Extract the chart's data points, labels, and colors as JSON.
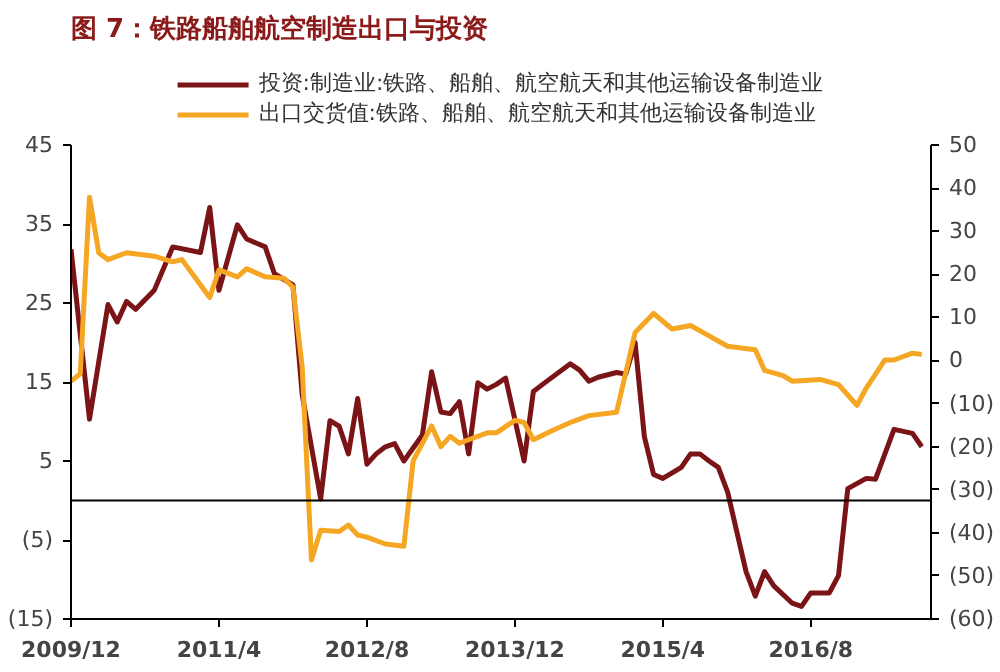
{
  "chart_data": {
    "type": "line",
    "title": "图 7：铁路船舶航空制造出口与投资",
    "legend": "top",
    "grid": false,
    "xlim": [
      "2009-12",
      "2017-09"
    ],
    "xticks": [
      {
        "value": "2009-12",
        "label": "2009/12"
      },
      {
        "value": "2011-04",
        "label": "2011/4"
      },
      {
        "value": "2012-08",
        "label": "2012/8"
      },
      {
        "value": "2013-12",
        "label": "2013/12"
      },
      {
        "value": "2015-04",
        "label": "2015/4"
      },
      {
        "value": "2016-08",
        "label": "2016/8"
      }
    ],
    "ylim": [
      -15,
      45
    ],
    "yticks": [
      {
        "value": -15,
        "label": "(15)"
      },
      {
        "value": -5,
        "label": "(5)"
      },
      5,
      15,
      25,
      35,
      45
    ],
    "y2lim": [
      -60,
      50
    ],
    "y2ticks": [
      {
        "value": -60,
        "label": "(60)"
      },
      {
        "value": -50,
        "label": "(50)"
      },
      {
        "value": -40,
        "label": "(40)"
      },
      {
        "value": -30,
        "label": "(30)"
      },
      {
        "value": -20,
        "label": "(20)"
      },
      {
        "value": -10,
        "label": "(10)"
      },
      0,
      10,
      20,
      30,
      40,
      50
    ],
    "ref_lines": [
      {
        "axis": "y",
        "value": 0,
        "color": "#000000"
      }
    ],
    "series": [
      {
        "name": "投资:制造业:铁路、船舶、航空航天和其他运输设备制造业",
        "color": "#7b1416",
        "x": [
          "2009-12",
          "2010-02",
          "2010-04",
          "2010-05",
          "2010-06",
          "2010-07",
          "2010-09",
          "2010-11",
          "2011-02",
          "2011-03",
          "2011-04",
          "2011-06",
          "2011-07",
          "2011-09",
          "2011-10",
          "2011-12",
          "2012-01",
          "2012-03",
          "2012-04",
          "2012-05",
          "2012-06",
          "2012-07",
          "2012-08",
          "2012-09",
          "2012-10",
          "2012-11",
          "2012-12",
          "2013-02",
          "2013-03",
          "2013-04",
          "2013-05",
          "2013-06",
          "2013-07",
          "2013-08",
          "2013-09",
          "2013-10",
          "2013-11",
          "2014-01",
          "2014-02",
          "2014-03",
          "2014-06",
          "2014-07",
          "2014-08",
          "2014-09",
          "2014-11",
          "2014-12",
          "2015-01",
          "2015-02",
          "2015-03",
          "2015-04",
          "2015-06",
          "2015-07",
          "2015-08",
          "2015-09",
          "2015-10",
          "2015-11",
          "2016-01",
          "2016-02",
          "2016-03",
          "2016-04",
          "2016-06",
          "2016-07",
          "2016-08",
          "2016-10",
          "2016-11",
          "2016-12",
          "2017-02",
          "2017-03",
          "2017-05",
          "2017-07",
          "2017-08"
        ],
        "values": [
          31.8,
          10.3,
          24.8,
          22.6,
          25.2,
          24.2,
          26.6,
          32.1,
          31.4,
          37.1,
          26.6,
          34.9,
          33.1,
          32.1,
          28.7,
          27.3,
          13.4,
          0.2,
          10.1,
          9.4,
          5.9,
          12.9,
          4.6,
          5.9,
          6.8,
          7.2,
          5.0,
          8.3,
          16.3,
          11.2,
          11.0,
          12.5,
          5.9,
          14.9,
          14.1,
          14.7,
          15.5,
          5.0,
          13.8,
          14.7,
          17.3,
          16.5,
          15.1,
          15.6,
          16.2,
          16.0,
          20.0,
          8.1,
          3.3,
          2.8,
          4.2,
          5.9,
          5.9,
          5.0,
          4.2,
          1.1,
          -9.0,
          -12.1,
          -9.0,
          -10.8,
          -13.0,
          -13.4,
          -11.7,
          -11.7,
          -9.5,
          1.5,
          2.8,
          2.7,
          9.0,
          8.5,
          6.8
        ]
      },
      {
        "name": "出口交货值:铁路、船舶、航空航天和其他运输设备制造业",
        "color": "#f5a623",
        "axis": "y2",
        "x": [
          "2009-12",
          "2010-01",
          "2010-02",
          "2010-03",
          "2010-04",
          "2010-05",
          "2010-06",
          "2010-09",
          "2010-11",
          "2010-12",
          "2011-03",
          "2011-04",
          "2011-06",
          "2011-07",
          "2011-09",
          "2011-11",
          "2011-12",
          "2012-01",
          "2012-02",
          "2012-03",
          "2012-05",
          "2012-06",
          "2012-07",
          "2012-08",
          "2012-10",
          "2012-12",
          "2013-01",
          "2013-03",
          "2013-04",
          "2013-05",
          "2013-06",
          "2013-07",
          "2013-09",
          "2013-10",
          "2013-12",
          "2014-01",
          "2014-02",
          "2014-04",
          "2014-06",
          "2014-08",
          "2014-11",
          "2015-01",
          "2015-03",
          "2015-05",
          "2015-07",
          "2015-09",
          "2015-11",
          "2016-02",
          "2016-03",
          "2016-05",
          "2016-06",
          "2016-09",
          "2016-11",
          "2017-01",
          "2017-02",
          "2017-04",
          "2017-05",
          "2017-07",
          "2017-08"
        ],
        "values": [
          -4.8,
          -3.1,
          37.9,
          25.0,
          23.4,
          24.2,
          25.0,
          24.2,
          22.9,
          23.4,
          14.6,
          21.0,
          19.4,
          21.3,
          19.4,
          19.1,
          17.0,
          -1.5,
          -46.3,
          -39.4,
          -39.7,
          -38.2,
          -40.5,
          -41.0,
          -42.6,
          -43.1,
          -23.3,
          -15.2,
          -20.0,
          -17.6,
          -19.2,
          -18.4,
          -16.8,
          -16.8,
          -13.9,
          -14.4,
          -18.4,
          -16.3,
          -14.4,
          -12.8,
          -12.0,
          6.5,
          10.9,
          7.3,
          8.1,
          5.7,
          3.3,
          2.5,
          -2.3,
          -3.5,
          -4.8,
          -4.4,
          -5.6,
          -10.4,
          -6.4,
          0.1,
          0.1,
          1.7,
          1.4
        ]
      }
    ]
  }
}
